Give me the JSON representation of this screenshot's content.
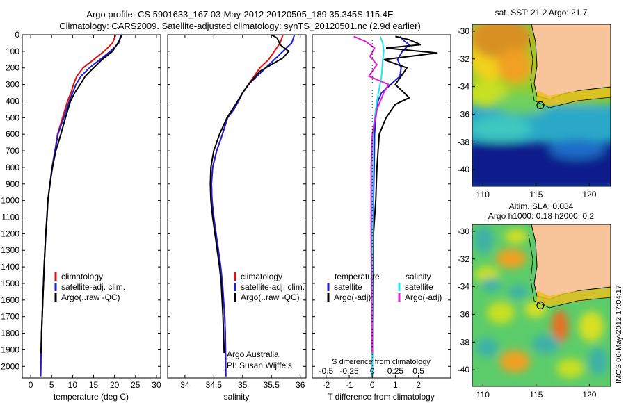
{
  "title": {
    "line1": "Argo profile: CS 5901633_167 03-May-2012 20120505_189 35.345S 115.4E",
    "line2": "Climatology: CARS2009. Satellite-adjusted climatology: synTS_20120501.nc (2.9d earlier)"
  },
  "colors": {
    "red": "#e01010",
    "blue": "#1f1fd0",
    "black": "#000000",
    "cyan": "#20e6e6",
    "magenta": "#e020d0",
    "land": "#f8c59a"
  },
  "chart_data": [
    {
      "type": "line",
      "name": "temperature panel",
      "xlabel": "temperature (deg C)",
      "xlim": [
        -2,
        31
      ],
      "ylim": [
        2070,
        0
      ],
      "yticks": [
        0,
        100,
        200,
        300,
        400,
        500,
        600,
        700,
        800,
        900,
        1000,
        1100,
        1200,
        1300,
        1400,
        1500,
        1600,
        1700,
        1800,
        1900,
        2000
      ],
      "xticks": [
        0,
        5,
        10,
        15,
        20,
        25,
        30
      ],
      "legend": [
        "climatology",
        "satellite-adj. clim.",
        "Argo(..raw -QC)"
      ],
      "series": [
        {
          "name": "climatology",
          "color": "red",
          "x": [
            20.3,
            19.5,
            17.5,
            15,
            12.5,
            11,
            10.2,
            9.6,
            8.8,
            7.6,
            6.4,
            5.8,
            5.1,
            4.6,
            4.1,
            3.9,
            3.6,
            3.4,
            3.2,
            3.05,
            2.9,
            2.75,
            2.6,
            2.5,
            2.4
          ],
          "y": [
            0,
            50,
            100,
            150,
            200,
            250,
            300,
            350,
            400,
            500,
            600,
            700,
            800,
            900,
            1000,
            1100,
            1200,
            1300,
            1400,
            1500,
            1600,
            1700,
            1800,
            1900,
            2060
          ]
        },
        {
          "name": "satellite-adj. clim.",
          "color": "blue",
          "x": [
            21.5,
            21,
            19,
            16.5,
            14,
            12,
            10.8,
            10,
            9.2,
            7.9,
            6.5,
            5.8,
            5.1,
            4.6,
            4.1,
            3.9,
            3.6,
            3.4,
            3.2,
            3.05,
            2.9,
            2.75,
            2.6,
            2.5,
            2.4
          ],
          "y": [
            0,
            50,
            100,
            150,
            200,
            250,
            300,
            350,
            400,
            500,
            600,
            700,
            800,
            900,
            1000,
            1100,
            1200,
            1300,
            1400,
            1500,
            1600,
            1700,
            1800,
            1900,
            2060
          ]
        },
        {
          "name": "Argo(..raw -QC)",
          "color": "black",
          "x": [
            21.8,
            20.8,
            19.5,
            17,
            15,
            13,
            11.8,
            10.5,
            9.5,
            8.3,
            7.2,
            6,
            5.2,
            4.6,
            4.1,
            3.85,
            3.6,
            3.4,
            3.2,
            3.05,
            2.9,
            2.75,
            2.6,
            2.5
          ],
          "y": [
            0,
            50,
            100,
            150,
            200,
            250,
            300,
            350,
            400,
            500,
            600,
            700,
            800,
            900,
            1000,
            1100,
            1200,
            1300,
            1400,
            1500,
            1600,
            1700,
            1800,
            1920
          ]
        }
      ]
    },
    {
      "type": "line",
      "name": "salinity panel",
      "xlabel": "salinity",
      "xlim": [
        33.7,
        36.1
      ],
      "ylim": [
        2070,
        0
      ],
      "xticks": [
        34,
        34.5,
        35,
        35.5,
        36
      ],
      "legend": [
        "climatology",
        "satellite-adj. clim.",
        "Argo(..raw -QC)"
      ],
      "annotation": [
        "Argo Australia",
        "PI: Susan Wijffels"
      ],
      "series": [
        {
          "name": "climatology",
          "color": "red",
          "x": [
            35.7,
            35.65,
            35.55,
            35.45,
            35.3,
            35.2,
            35.1,
            35.0,
            34.92,
            34.85,
            34.74,
            34.65,
            34.55,
            34.48,
            34.46,
            34.47,
            34.5,
            34.54,
            34.58,
            34.62,
            34.65,
            34.67,
            34.69,
            34.7,
            34.71
          ],
          "y": [
            0,
            50,
            100,
            150,
            200,
            250,
            300,
            350,
            400,
            450,
            500,
            600,
            700,
            800,
            900,
            1000,
            1100,
            1200,
            1300,
            1400,
            1500,
            1600,
            1700,
            1800,
            2060
          ]
        },
        {
          "name": "satellite-adj. clim.",
          "color": "blue",
          "x": [
            35.9,
            35.85,
            35.7,
            35.55,
            35.4,
            35.25,
            35.1,
            35.0,
            34.93,
            34.85,
            34.74,
            34.65,
            34.55,
            34.48,
            34.46,
            34.47,
            34.5,
            34.54,
            34.58,
            34.62,
            34.65,
            34.67,
            34.69,
            34.7,
            34.71
          ],
          "y": [
            0,
            50,
            100,
            150,
            200,
            250,
            300,
            350,
            400,
            450,
            500,
            600,
            700,
            800,
            900,
            1000,
            1100,
            1200,
            1300,
            1400,
            1500,
            1600,
            1700,
            1800,
            2060
          ]
        },
        {
          "name": "Argo(..raw -QC)",
          "color": "black",
          "x": [
            35.5,
            35.6,
            35.65,
            35.8,
            35.7,
            35.5,
            35.3,
            35.15,
            35.02,
            34.88,
            34.73,
            34.6,
            34.5,
            34.45,
            34.44,
            34.45,
            34.48,
            34.52,
            34.56,
            34.6,
            34.63,
            34.66,
            34.68
          ],
          "y": [
            0,
            20,
            60,
            100,
            140,
            180,
            220,
            280,
            340,
            420,
            500,
            600,
            700,
            800,
            900,
            1000,
            1100,
            1200,
            1300,
            1400,
            1500,
            1700,
            1920
          ]
        }
      ]
    },
    {
      "type": "line",
      "name": "difference panel",
      "xlabel_bottom": "T difference from climatology",
      "xlabel_top": "S difference from climatology",
      "xlim": [
        -2.6,
        3.4
      ],
      "ylim": [
        2070,
        0
      ],
      "xticks_T": [
        -2,
        -1,
        0,
        1,
        2
      ],
      "xticks_S": [
        "-0.5",
        "-0.25",
        "0",
        "0.25",
        "0.5"
      ],
      "legend_headers": [
        "temperature",
        "salinity"
      ],
      "legend": [
        "satellite",
        "Argo(-adj)",
        "satellite",
        "Argo(-adj)"
      ],
      "series": [
        {
          "name": "temperature satellite",
          "color": "blue",
          "x": [
            1.2,
            1.4,
            1.6,
            1.3,
            1.1,
            1.25,
            1.2,
            0.8,
            0.4,
            0.25,
            0.15,
            0.1,
            0.08,
            0.05,
            0.03,
            0.02,
            0.01,
            0.0
          ],
          "y": [
            10,
            40,
            60,
            100,
            150,
            200,
            250,
            300,
            350,
            400,
            500,
            600,
            800,
            1000,
            1200,
            1400,
            1700,
            2060
          ]
        },
        {
          "name": "temperature Argo(-adj)",
          "color": "black",
          "x": [
            1.0,
            1.6,
            2.1,
            0.6,
            2.8,
            0.5,
            1.5,
            1.0,
            1.6,
            1.0,
            0.6,
            0.3,
            0.2,
            0.15,
            0.05,
            0.02,
            0.0
          ],
          "y": [
            10,
            30,
            60,
            80,
            110,
            150,
            200,
            300,
            380,
            420,
            500,
            600,
            800,
            1000,
            1200,
            1500,
            1920
          ]
        },
        {
          "name": "salinity satellite",
          "color": "cyan",
          "x": [
            0.35,
            0.45,
            0.5,
            0.45,
            0.4,
            0.2,
            0.05,
            0.02,
            0.01,
            0.0
          ],
          "y": [
            10,
            50,
            100,
            150,
            250,
            400,
            550,
            700,
            1000,
            2060
          ]
        },
        {
          "name": "salinity Argo(-adj)",
          "color": "magenta",
          "x": [
            -0.8,
            -0.3,
            0.1,
            -0.1,
            0.2,
            -0.15,
            0.7,
            0.5,
            0.2,
            0.0,
            -0.05,
            -0.05,
            0.0
          ],
          "y": [
            10,
            40,
            80,
            130,
            180,
            250,
            300,
            350,
            450,
            600,
            800,
            1200,
            1920
          ]
        }
      ]
    },
    {
      "type": "heatmap",
      "name": "SST map",
      "title": "sat. SST: 21.2 Argo: 21.7",
      "xticks": [
        110,
        115,
        120
      ],
      "yticks": [
        -30,
        -32,
        -34,
        -36,
        -38,
        -40
      ],
      "float_position": {
        "lon": 115.4,
        "lat": -35.345
      }
    },
    {
      "type": "heatmap",
      "name": "SLA map",
      "title_line1": "Altim. SLA: 0.084",
      "title_line2": "Argo h1000: 0.18 h2000: 0.2",
      "xticks": [
        110,
        115,
        120
      ],
      "yticks": [
        -30,
        -32,
        -34,
        -36,
        -38,
        -40
      ],
      "float_position": {
        "lon": 115.4,
        "lat": -35.345
      }
    }
  ],
  "footer": "IMOS 06-May-2012 17:04:17"
}
